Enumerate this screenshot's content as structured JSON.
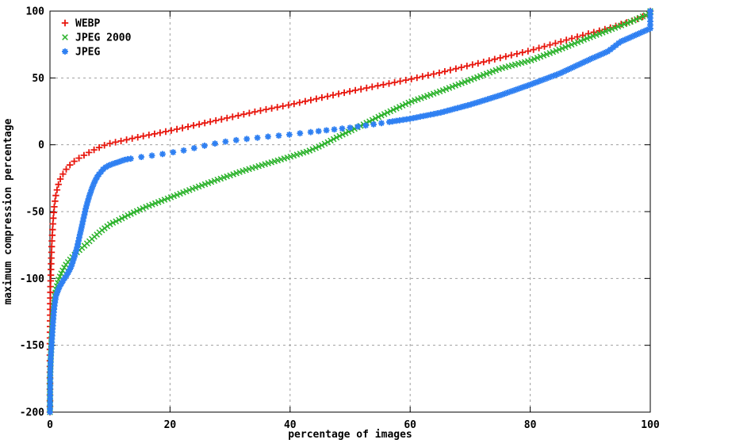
{
  "chart_data": {
    "type": "scatter",
    "title": "",
    "xlabel": "percentage of images",
    "ylabel": "maximum compression percentage",
    "xlim": [
      0,
      100
    ],
    "ylim": [
      -200,
      100
    ],
    "xticks": [
      0,
      20,
      40,
      60,
      80,
      100
    ],
    "yticks": [
      100,
      50,
      0,
      -50,
      -100,
      -150,
      -200
    ],
    "grid": true,
    "grid_style": "dashed-gray",
    "legend_position": "top-left-inside",
    "series": [
      {
        "name": "WEBP",
        "color": "#e8170e",
        "marker": "plus",
        "points": [
          [
            0,
            -200
          ],
          [
            0,
            -150
          ],
          [
            0.05,
            -120
          ],
          [
            0.1,
            -105
          ],
          [
            0.2,
            -88
          ],
          [
            0.3,
            -75
          ],
          [
            0.5,
            -58
          ],
          [
            0.7,
            -47
          ],
          [
            1,
            -37
          ],
          [
            1.5,
            -28
          ],
          [
            2,
            -23
          ],
          [
            3,
            -16.5
          ],
          [
            4,
            -12.5
          ],
          [
            5,
            -9.5
          ],
          [
            6,
            -7
          ],
          [
            7,
            -4.5
          ],
          [
            8,
            -2.5
          ],
          [
            9,
            -0.5
          ],
          [
            10,
            1
          ],
          [
            12,
            3
          ],
          [
            15,
            6
          ],
          [
            18,
            8.7
          ],
          [
            20,
            10.5
          ],
          [
            25,
            15.5
          ],
          [
            30,
            20.5
          ],
          [
            35,
            25.5
          ],
          [
            40,
            30
          ],
          [
            45,
            35
          ],
          [
            50,
            40
          ],
          [
            55,
            44.5
          ],
          [
            60,
            49
          ],
          [
            65,
            54
          ],
          [
            70,
            59.5
          ],
          [
            75,
            65
          ],
          [
            80,
            70.5
          ],
          [
            85,
            77
          ],
          [
            90,
            83.5
          ],
          [
            93,
            87
          ],
          [
            95,
            90
          ],
          [
            97,
            92.7
          ],
          [
            99,
            96.3
          ],
          [
            100,
            98
          ],
          [
            100,
            100
          ]
        ]
      },
      {
        "name": "JPEG 2000",
        "color": "#2db32d",
        "marker": "cross",
        "points": [
          [
            0,
            -200
          ],
          [
            0,
            -175
          ],
          [
            0.1,
            -162
          ],
          [
            0.2,
            -150
          ],
          [
            0.35,
            -137
          ],
          [
            0.5,
            -127
          ],
          [
            0.7,
            -117
          ],
          [
            1,
            -108
          ],
          [
            1.5,
            -100
          ],
          [
            2,
            -95
          ],
          [
            2.6,
            -90
          ],
          [
            3.5,
            -85
          ],
          [
            4.6,
            -80
          ],
          [
            6,
            -74.5
          ],
          [
            7.1,
            -70
          ],
          [
            8.5,
            -64.5
          ],
          [
            10,
            -59.5
          ],
          [
            12,
            -55
          ],
          [
            14,
            -50.5
          ],
          [
            16,
            -46.5
          ],
          [
            18,
            -43
          ],
          [
            20,
            -39.5
          ],
          [
            24,
            -32.5
          ],
          [
            28,
            -26
          ],
          [
            32,
            -19.8
          ],
          [
            36,
            -14.3
          ],
          [
            40,
            -9
          ],
          [
            43,
            -4.8
          ],
          [
            45,
            -1
          ],
          [
            48,
            6
          ],
          [
            51,
            12.5
          ],
          [
            55,
            21.5
          ],
          [
            60,
            32
          ],
          [
            65,
            40
          ],
          [
            70,
            48.5
          ],
          [
            75,
            57
          ],
          [
            80,
            63
          ],
          [
            85,
            71.5
          ],
          [
            90,
            80.5
          ],
          [
            95,
            89
          ],
          [
            97,
            92.5
          ],
          [
            99,
            96.5
          ],
          [
            100,
            98
          ],
          [
            100,
            100
          ]
        ]
      },
      {
        "name": "JPEG",
        "color": "#2f80f2",
        "marker": "asterisk",
        "points": [
          [
            0,
            -200
          ],
          [
            0.05,
            -170
          ],
          [
            0.15,
            -158
          ],
          [
            0.3,
            -148
          ],
          [
            0.5,
            -133
          ],
          [
            0.7,
            -122
          ],
          [
            1,
            -113
          ],
          [
            1.5,
            -107
          ],
          [
            2,
            -103
          ],
          [
            2.5,
            -99.5
          ],
          [
            3,
            -96
          ],
          [
            3.5,
            -91.5
          ],
          [
            4,
            -85
          ],
          [
            4.5,
            -77
          ],
          [
            5,
            -67
          ],
          [
            5.5,
            -57
          ],
          [
            6,
            -47
          ],
          [
            6.5,
            -39
          ],
          [
            7,
            -32.5
          ],
          [
            7.5,
            -27
          ],
          [
            8,
            -23
          ],
          [
            9,
            -17.5
          ],
          [
            10,
            -15
          ],
          [
            11,
            -13.5
          ],
          [
            12.6,
            -11
          ],
          [
            15,
            -9.3
          ],
          [
            18,
            -7.5
          ],
          [
            20,
            -6
          ],
          [
            22,
            -4.5
          ],
          [
            24,
            -2.5
          ],
          [
            26.4,
            0
          ],
          [
            30,
            3
          ],
          [
            35,
            5.5
          ],
          [
            40,
            7.7
          ],
          [
            45,
            10.3
          ],
          [
            50,
            12.8
          ],
          [
            55,
            16
          ],
          [
            60,
            19.5
          ],
          [
            65,
            24
          ],
          [
            70,
            30
          ],
          [
            75,
            37
          ],
          [
            80,
            45
          ],
          [
            85,
            53.5
          ],
          [
            90,
            64
          ],
          [
            93,
            70
          ],
          [
            95,
            77
          ],
          [
            97,
            81
          ],
          [
            99,
            85
          ],
          [
            100,
            87
          ],
          [
            100,
            100
          ]
        ]
      }
    ]
  },
  "colors": {
    "background": "#ffffff",
    "axis": "#000000",
    "grid": "#9e9e9e",
    "text": "#000000"
  }
}
